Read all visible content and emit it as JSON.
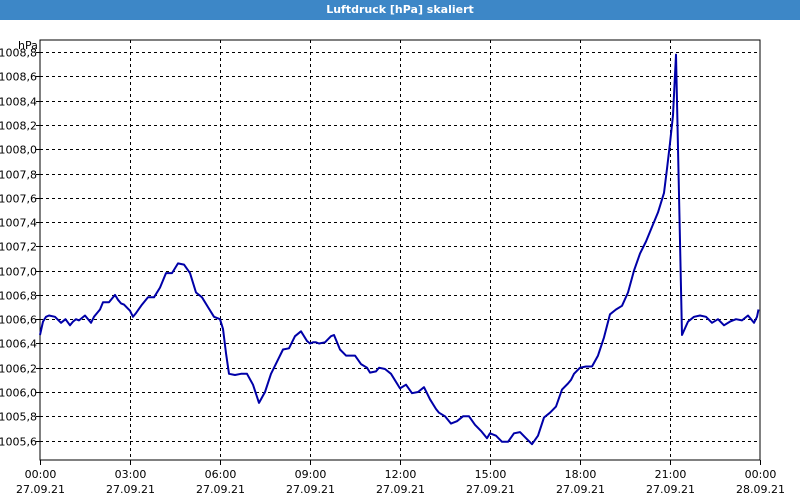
{
  "window": {
    "title": "Luftdruck [hPa] skaliert"
  },
  "chart_data": {
    "type": "line",
    "title": "Luftdruck [hPa] skaliert",
    "unit_label": "hPa",
    "line_color": "#0000a8",
    "grid": true,
    "grid_style": "dashed",
    "ylim": [
      1005.44,
      1008.9
    ],
    "y_ticks": [
      "1005,6",
      "1005,8",
      "1006,0",
      "1006,2",
      "1006,4",
      "1006,6",
      "1006,8",
      "1007,0",
      "1007,2",
      "1007,4",
      "1007,6",
      "1007,8",
      "1008,0",
      "1008,2",
      "1008,4",
      "1008,6",
      "1008,8"
    ],
    "xlim": [
      0,
      24
    ],
    "x_ticks": [
      {
        "time": "00:00",
        "date": "27.09.21"
      },
      {
        "time": "03:00",
        "date": "27.09.21"
      },
      {
        "time": "06:00",
        "date": "27.09.21"
      },
      {
        "time": "09:00",
        "date": "27.09.21"
      },
      {
        "time": "12:00",
        "date": "27.09.21"
      },
      {
        "time": "15:00",
        "date": "27.09.21"
      },
      {
        "time": "18:00",
        "date": "27.09.21"
      },
      {
        "time": "21:00",
        "date": "27.09.21"
      },
      {
        "time": "00:00",
        "date": "28.09.21"
      }
    ],
    "series": [
      {
        "x": [
          0.0,
          0.1,
          0.2,
          0.3,
          0.5,
          0.7,
          0.85,
          1.0,
          1.1,
          1.2,
          1.3,
          1.5,
          1.7,
          1.8,
          2.0,
          2.1,
          2.3,
          2.5,
          2.6,
          2.7,
          2.8,
          3.0,
          3.1,
          3.2,
          3.4,
          3.6,
          3.8,
          4.0,
          4.2,
          4.4,
          4.6,
          4.8,
          5.0,
          5.2,
          5.4,
          5.6,
          5.8,
          6.0,
          6.1,
          6.2,
          6.3,
          6.5,
          6.7,
          6.9,
          7.1,
          7.3,
          7.5,
          7.7,
          7.9,
          8.1,
          8.3,
          8.5,
          8.7,
          8.9,
          9.0,
          9.1,
          9.2,
          9.3,
          9.5,
          9.7,
          9.8,
          10.0,
          10.2,
          10.3,
          10.5,
          10.7,
          10.9,
          11.0,
          11.2,
          11.3,
          11.5,
          11.7,
          12.0,
          12.2,
          12.4,
          12.6,
          12.8,
          13.0,
          13.2,
          13.3,
          13.5,
          13.7,
          13.9,
          14.1,
          14.3,
          14.5,
          14.7,
          14.9,
          15.0,
          15.2,
          15.4,
          15.6,
          15.8,
          16.0,
          16.2,
          16.4,
          16.6,
          16.8,
          17.0,
          17.2,
          17.4,
          17.6,
          17.7,
          17.8,
          18.0,
          18.2,
          18.4,
          18.6,
          18.8,
          19.0,
          19.2,
          19.4,
          19.6,
          19.8,
          20.0,
          20.2,
          20.4,
          20.6,
          20.8,
          20.9,
          21.0,
          21.1,
          21.2,
          21.4,
          21.6,
          21.8,
          22.0,
          22.2,
          22.4,
          22.6,
          22.8,
          23.0,
          23.2,
          23.4,
          23.6,
          23.8,
          23.9,
          23.95
        ],
        "y": [
          1006.47,
          1006.58,
          1006.62,
          1006.63,
          1006.62,
          1006.57,
          1006.6,
          1006.55,
          1006.58,
          1006.6,
          1006.59,
          1006.63,
          1006.57,
          1006.62,
          1006.68,
          1006.74,
          1006.74,
          1006.8,
          1006.76,
          1006.73,
          1006.72,
          1006.67,
          1006.62,
          1006.65,
          1006.72,
          1006.78,
          1006.78,
          1006.86,
          1006.98,
          1006.98,
          1007.06,
          1007.05,
          1006.98,
          1006.82,
          1006.78,
          1006.7,
          1006.62,
          1006.6,
          1006.52,
          1006.32,
          1006.15,
          1006.14,
          1006.15,
          1006.15,
          1006.06,
          1005.91,
          1006.0,
          1006.15,
          1006.25,
          1006.35,
          1006.36,
          1006.46,
          1006.5,
          1006.42,
          1006.4,
          1006.41,
          1006.41,
          1006.4,
          1006.41,
          1006.46,
          1006.47,
          1006.35,
          1006.3,
          1006.3,
          1006.3,
          1006.23,
          1006.2,
          1006.16,
          1006.17,
          1006.2,
          1006.19,
          1006.15,
          1006.03,
          1006.06,
          1005.99,
          1006.0,
          1006.04,
          1005.94,
          1005.86,
          1005.83,
          1005.8,
          1005.74,
          1005.76,
          1005.8,
          1005.8,
          1005.73,
          1005.68,
          1005.62,
          1005.66,
          1005.64,
          1005.59,
          1005.59,
          1005.66,
          1005.67,
          1005.62,
          1005.57,
          1005.64,
          1005.79,
          1005.83,
          1005.88,
          1006.02,
          1006.07,
          1006.1,
          1006.15,
          1006.2,
          1006.21,
          1006.21,
          1006.3,
          1006.45,
          1006.64,
          1006.68,
          1006.71,
          1006.82,
          1007.0,
          1007.14,
          1007.24,
          1007.36,
          1007.48,
          1007.64,
          1007.84,
          1008.05,
          1008.28,
          1008.78,
          1006.47,
          1006.58,
          1006.62,
          1006.63,
          1006.62,
          1006.57,
          1006.6,
          1006.55,
          1006.58,
          1006.6,
          1006.59,
          1006.63,
          1006.57,
          1006.62,
          1006.68
        ]
      }
    ]
  }
}
